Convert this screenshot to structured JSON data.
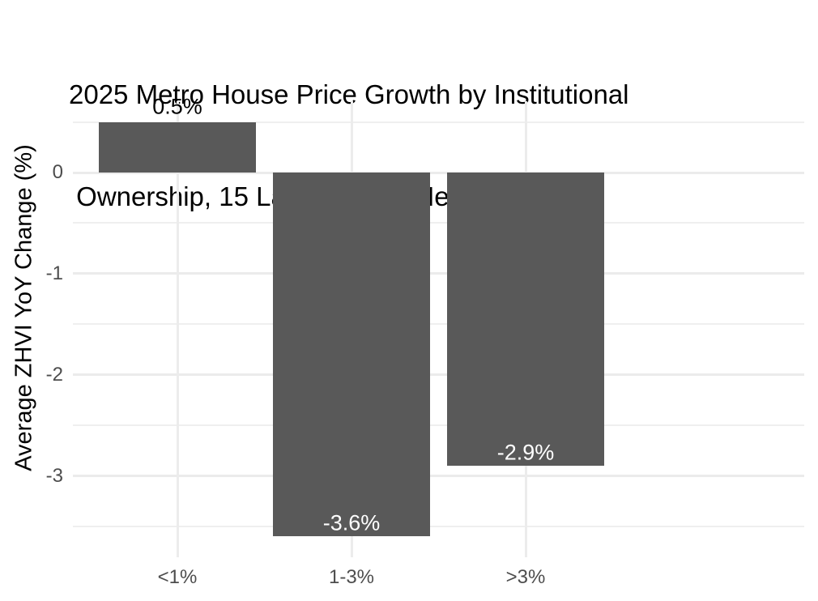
{
  "title": {
    "line1": "2025 Metro House Price Growth by Institutional",
    "line2": " Ownership, 15 Largest U.S. Metros"
  },
  "chart_data": {
    "type": "bar",
    "title": "2025 Metro House Price Growth by Institutional Ownership, 15 Largest U.S. Metros",
    "categories": [
      "<1%",
      "1-3%",
      ">3%"
    ],
    "values": [
      0.5,
      -3.6,
      -2.9
    ],
    "bar_labels": [
      "0.5%",
      "-3.6%",
      "-2.9%"
    ],
    "xlabel": "",
    "ylabel": "Average ZHVI YoY Change (%)",
    "ylim": [
      -3.805,
      0.705
    ],
    "yticks_major": [
      0,
      -1,
      -2,
      -3
    ],
    "ytick_labels": [
      "0",
      "-1",
      "-2",
      "-3"
    ],
    "yticks_minor": [
      0.5,
      -0.5,
      -1.5,
      -2.5,
      -3.5
    ],
    "grid": "on",
    "legend": "none",
    "colors": {
      "bar": "#595959",
      "grid_major": "#EBEBEB",
      "grid_minor": "#EFEFEF",
      "axis_text": "#4D4D4D",
      "title_text": "#000000",
      "label_positive": "#000000",
      "label_negative": "#FFFFFF",
      "background": "#FFFFFF"
    }
  }
}
